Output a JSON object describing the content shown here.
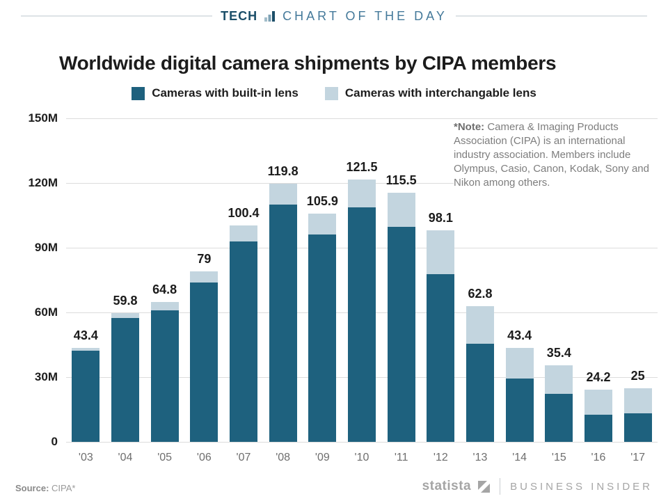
{
  "header": {
    "kicker_left": "TECH",
    "kicker_right": "CHART OF THE DAY"
  },
  "title": "Worldwide digital camera shipments by CIPA members",
  "note": {
    "label": "*Note:",
    "text": " Camera & Imaging Products Association (CIPA) is an international industry association. Members include Olympus, Casio, Canon, Kodak, Sony and Nikon among others."
  },
  "footer": {
    "source_label": "Source:",
    "source_value": " CIPA*",
    "brand_statista": "statista",
    "brand_partner": "BUSINESS INSIDER"
  },
  "colors": {
    "built_in": "#1e617e",
    "interchangeable": "#c3d5df",
    "kicker_dark": "#1b4e68",
    "kicker_light": "#44799a",
    "gridline": "#dcdcdc"
  },
  "chart_data": {
    "type": "bar",
    "stacked": true,
    "title": "Worldwide digital camera shipments by CIPA members",
    "xlabel": "",
    "ylabel": "",
    "ylim": [
      0,
      150
    ],
    "grid": true,
    "legend_position": "top",
    "categories": [
      "'03",
      "'04",
      "'05",
      "'06",
      "'07",
      "'08",
      "'09",
      "'10",
      "'11",
      "'12",
      "'13",
      "'14",
      "'15",
      "'16",
      "'17"
    ],
    "series": [
      {
        "name": "Cameras with built-in lens",
        "color": "#1e617e",
        "values": [
          42.2,
          57.3,
          60.9,
          73.8,
          92.9,
          110.1,
          96.0,
          108.6,
          99.8,
          77.9,
          45.5,
          29.5,
          22.4,
          12.6,
          13.3
        ]
      },
      {
        "name": "Cameras with interchangable lens",
        "color": "#c3d5df",
        "values": [
          1.2,
          2.5,
          3.9,
          5.2,
          7.5,
          9.7,
          9.9,
          12.9,
          15.7,
          20.2,
          17.3,
          13.9,
          13.0,
          11.6,
          11.7
        ]
      }
    ],
    "totals": [
      43.4,
      59.8,
      64.8,
      79,
      100.4,
      119.8,
      105.9,
      121.5,
      115.5,
      98.1,
      62.8,
      43.4,
      35.4,
      24.2,
      25
    ],
    "total_labels": [
      "43.4",
      "59.8",
      "64.8",
      "79",
      "100.4",
      "119.8",
      "105.9",
      "121.5",
      "115.5",
      "98.1",
      "62.8",
      "43.4",
      "35.4",
      "24.2",
      "25"
    ],
    "yticks": [
      {
        "value": 0,
        "label": "0"
      },
      {
        "value": 30,
        "label": "30M"
      },
      {
        "value": 60,
        "label": "60M"
      },
      {
        "value": 90,
        "label": "90M"
      },
      {
        "value": 120,
        "label": "120M"
      },
      {
        "value": 150,
        "label": "150M"
      }
    ]
  }
}
